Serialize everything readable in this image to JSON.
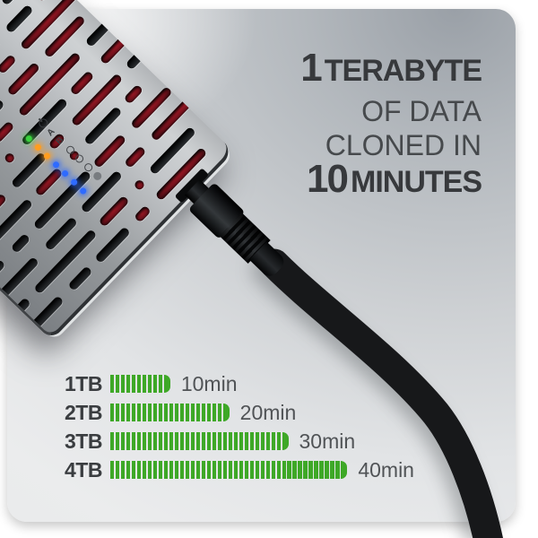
{
  "headline": {
    "line1": {
      "big": "1",
      "rest": "TERABYTE"
    },
    "line2": "OF DATA",
    "line3": "CLONED IN",
    "line4": {
      "big": "10",
      "rest": "MINUTES"
    }
  },
  "device": {
    "leds": [
      {
        "color": "#39d23c",
        "label_type": "power-icon"
      },
      {
        "color": "#ff9d1f",
        "label_type": "text",
        "label": "A"
      },
      {
        "color": "#ff9d1f",
        "label_type": "text",
        "label": "B"
      },
      {
        "color": "#2f6bff",
        "label_type": "ring-icon"
      },
      {
        "color": "#2f6bff",
        "label_type": "ring-icon"
      },
      {
        "color": "#2f6bff",
        "label_type": "ring-icon"
      },
      {
        "color": "#2f6bff",
        "label_type": "dot-icon"
      }
    ]
  },
  "chart_data": {
    "type": "bar",
    "orientation": "horizontal",
    "categories": [
      "1TB",
      "2TB",
      "3TB",
      "4TB"
    ],
    "values": [
      10,
      20,
      30,
      40
    ],
    "unit": "minutes",
    "value_labels": [
      "10min",
      "20min",
      "30min",
      "40min"
    ],
    "segments": [
      11,
      22,
      33,
      44
    ],
    "bar_color": "#3ea827",
    "category_color": "#3a3d40",
    "label_color": "#505356"
  },
  "colors": {
    "headline_bold": "#37393c",
    "headline_regular": "#46494c",
    "card_top_right": "#9aa0a7",
    "card_bottom": "#e9eaeb",
    "page_background": "#ffffff"
  }
}
